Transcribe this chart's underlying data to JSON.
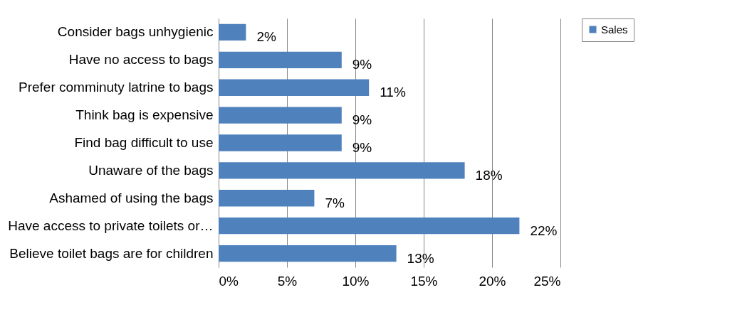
{
  "chart_data": {
    "type": "bar",
    "orientation": "horizontal",
    "categories": [
      "Consider bags unhygienic",
      "Have no access to bags",
      "Prefer comminuty latrine to bags",
      "Think bag is expensive",
      "Find bag difficult to use",
      "Unaware of the bags",
      "Ashamed of using the bags",
      "Have access to private toilets or…",
      "Believe toilet bags are for children"
    ],
    "series": [
      {
        "name": "Sales",
        "color": "#4f81bd",
        "values": [
          2,
          9,
          11,
          9,
          9,
          18,
          7,
          22,
          13
        ],
        "value_labels": [
          "2%",
          "9%",
          "11%",
          "9%",
          "9%",
          "18%",
          "7%",
          "22%",
          "13%"
        ]
      }
    ],
    "xlim": [
      0,
      25
    ],
    "xticks": [
      {
        "value": 0,
        "label": "0%"
      },
      {
        "value": 5,
        "label": "5%"
      },
      {
        "value": 10,
        "label": "10%"
      },
      {
        "value": 15,
        "label": "15%"
      },
      {
        "value": 20,
        "label": "20%"
      },
      {
        "value": 25,
        "label": "25%"
      }
    ],
    "grid": "x",
    "legend": "right"
  }
}
